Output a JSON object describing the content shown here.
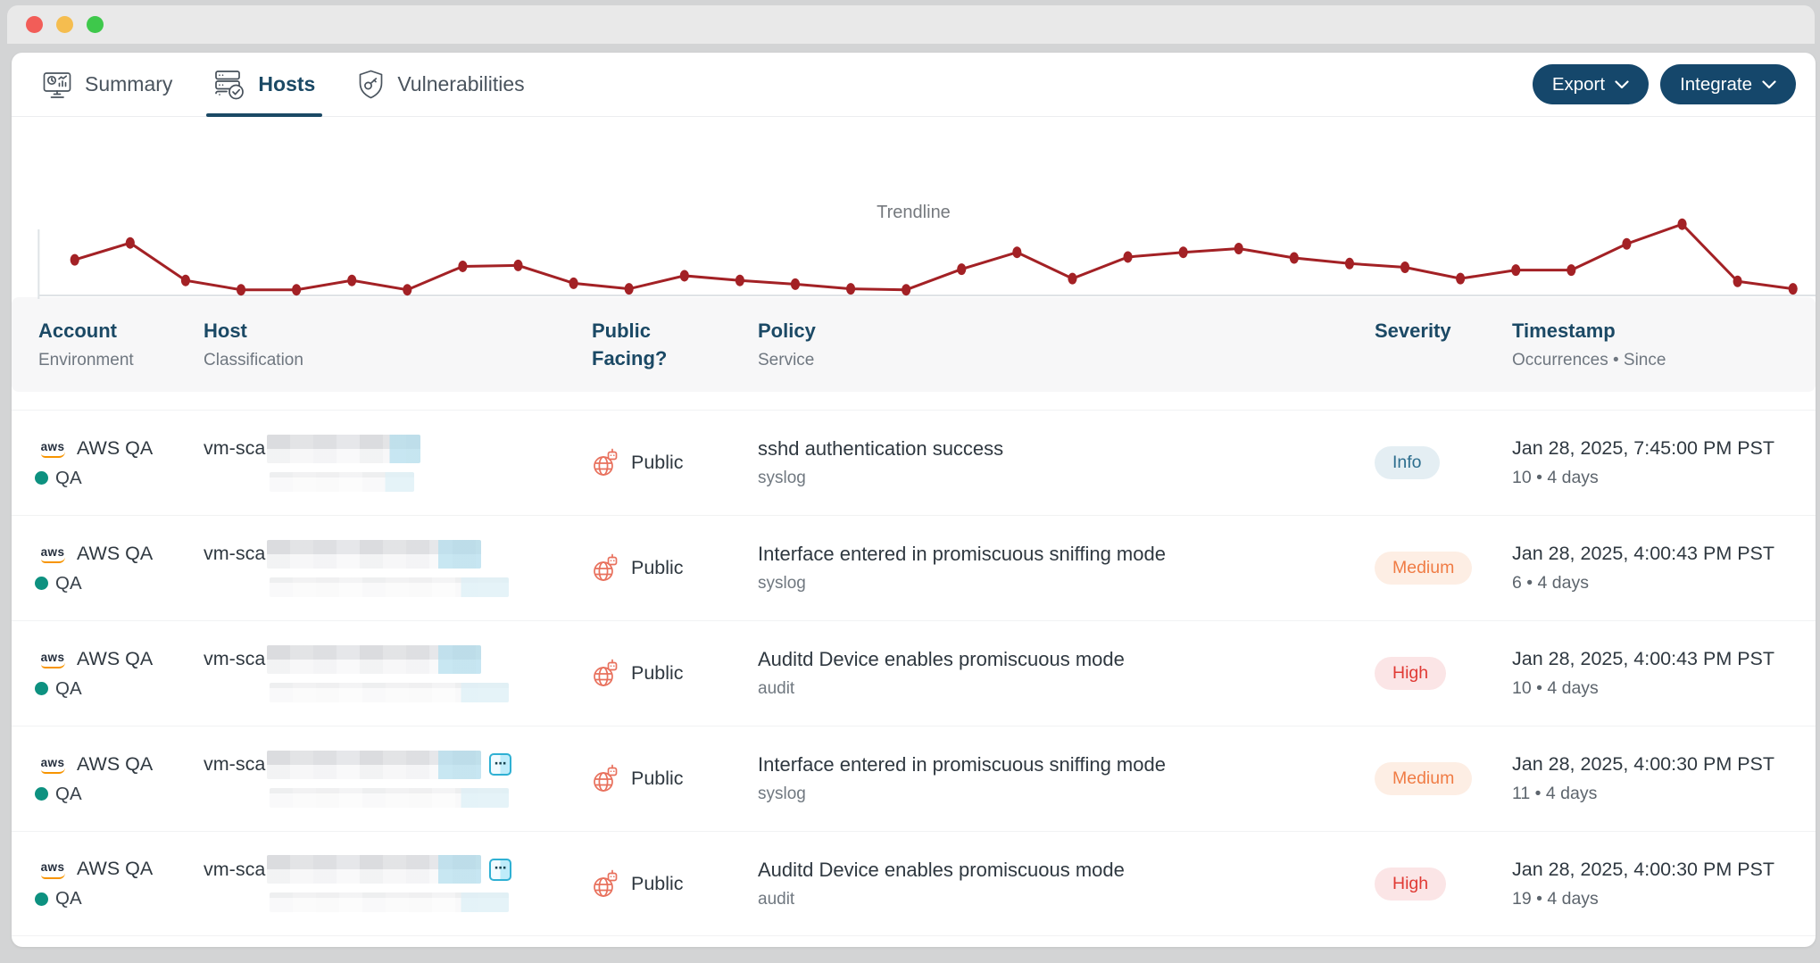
{
  "window": {
    "controls": [
      {
        "name": "close",
        "color": "#f25d58"
      },
      {
        "name": "minimize",
        "color": "#f5bd4f"
      },
      {
        "name": "maximize",
        "color": "#3ec84b"
      }
    ]
  },
  "tabbar": {
    "tabs": [
      {
        "id": "summary",
        "label": "Summary",
        "active": false
      },
      {
        "id": "hosts",
        "label": "Hosts",
        "active": true
      },
      {
        "id": "vulnerabilities",
        "label": "Vulnerabilities",
        "active": false
      }
    ],
    "actions": {
      "export_label": "Export",
      "integrate_label": "Integrate"
    }
  },
  "chart_data": {
    "type": "line",
    "title": "Trendline",
    "x": [
      1,
      2,
      3,
      4,
      5,
      6,
      7,
      8,
      9,
      10,
      11,
      12,
      13,
      14,
      15,
      16,
      17,
      18,
      19,
      20,
      21,
      22,
      23,
      24,
      25,
      26,
      27,
      28,
      29,
      30,
      31,
      32
    ],
    "values": [
      38,
      56,
      16,
      6,
      6,
      16,
      6,
      31,
      32,
      13,
      7,
      21,
      16,
      12,
      7,
      6,
      28,
      46,
      18,
      41,
      46,
      50,
      40,
      34,
      30,
      18,
      27,
      27,
      55,
      76,
      15,
      7
    ],
    "xlabel": "",
    "ylabel": "",
    "ylim": [
      0,
      85
    ],
    "grid": false,
    "legend": "none",
    "marker": "dot",
    "line_color": "#a32125",
    "axis_color": "#dfe3e6"
  },
  "table": {
    "headers": {
      "account": {
        "title": "Account",
        "subtitle": "Environment"
      },
      "host": {
        "title": "Host",
        "subtitle": "Classification"
      },
      "public": {
        "title": "Public Facing?"
      },
      "policy": {
        "title": "Policy",
        "subtitle": "Service"
      },
      "severity": {
        "title": "Severity"
      },
      "timestamp": {
        "title": "Timestamp",
        "subtitle": "Occurrences • Since"
      }
    },
    "rows": [
      {
        "account": {
          "name": "AWS QA",
          "environment": "QA",
          "provider": "aws"
        },
        "host": {
          "name_prefix": "vm-sca",
          "redacted": true,
          "has_more_button": false
        },
        "public_facing": {
          "label": "Public"
        },
        "policy": {
          "name": "sshd authentication success",
          "service": "syslog"
        },
        "severity": {
          "label": "Info",
          "key": "info"
        },
        "timestamp": {
          "datetime": "Jan 28, 2025, 7:45:00 PM PST",
          "occurrences_line": "10 • 4 days"
        }
      },
      {
        "account": {
          "name": "AWS QA",
          "environment": "QA",
          "provider": "aws"
        },
        "host": {
          "name_prefix": "vm-sca",
          "redacted": true,
          "has_more_button": false
        },
        "public_facing": {
          "label": "Public"
        },
        "policy": {
          "name": "Interface entered in promiscuous sniffing mode",
          "service": "syslog"
        },
        "severity": {
          "label": "Medium",
          "key": "medium"
        },
        "timestamp": {
          "datetime": "Jan 28, 2025, 4:00:43 PM PST",
          "occurrences_line": "6 • 4 days"
        }
      },
      {
        "account": {
          "name": "AWS QA",
          "environment": "QA",
          "provider": "aws"
        },
        "host": {
          "name_prefix": "vm-sca",
          "redacted": true,
          "has_more_button": false
        },
        "public_facing": {
          "label": "Public"
        },
        "policy": {
          "name": "Auditd Device enables promiscuous mode",
          "service": "audit"
        },
        "severity": {
          "label": "High",
          "key": "high"
        },
        "timestamp": {
          "datetime": "Jan 28, 2025, 4:00:43 PM PST",
          "occurrences_line": "10 • 4 days"
        }
      },
      {
        "account": {
          "name": "AWS QA",
          "environment": "QA",
          "provider": "aws"
        },
        "host": {
          "name_prefix": "vm-sca",
          "redacted": true,
          "has_more_button": true
        },
        "public_facing": {
          "label": "Public"
        },
        "policy": {
          "name": "Interface entered in promiscuous sniffing mode",
          "service": "syslog"
        },
        "severity": {
          "label": "Medium",
          "key": "medium"
        },
        "timestamp": {
          "datetime": "Jan 28, 2025, 4:00:30 PM PST",
          "occurrences_line": "11 • 4 days"
        }
      },
      {
        "account": {
          "name": "AWS QA",
          "environment": "QA",
          "provider": "aws"
        },
        "host": {
          "name_prefix": "vm-sca",
          "redacted": true,
          "has_more_button": true
        },
        "public_facing": {
          "label": "Public"
        },
        "policy": {
          "name": "Auditd Device enables promiscuous mode",
          "service": "audit"
        },
        "severity": {
          "label": "High",
          "key": "high"
        },
        "timestamp": {
          "datetime": "Jan 28, 2025, 4:00:30 PM PST",
          "occurrences_line": "19 • 4 days"
        }
      }
    ]
  },
  "colors": {
    "accent_navy": "#1b4965",
    "trendline_red": "#a32125",
    "env_teal": "#0d9180",
    "aws_orange": "#f79400",
    "globe_coral": "#e8705c",
    "more_button_cyan": "#2fb0d3"
  }
}
